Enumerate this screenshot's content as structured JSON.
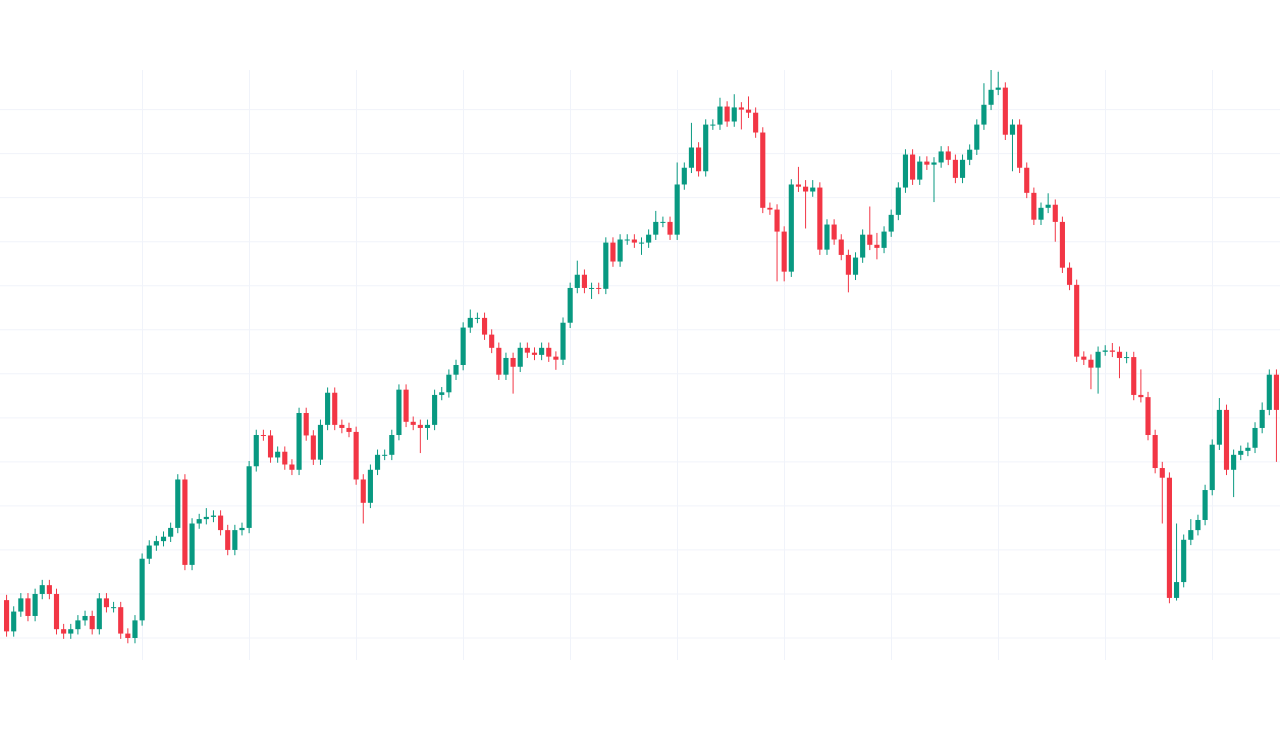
{
  "chart_data": {
    "type": "candlestick",
    "up_color": "#089981",
    "down_color": "#f23645",
    "grid": true,
    "grid_color": "#f0f3fa",
    "ylim": [
      5,
      139
    ],
    "yticks": [
      10,
      20,
      30,
      40,
      50,
      60,
      70,
      80,
      90,
      100,
      110,
      120,
      130
    ],
    "ohlc": [
      [
        18.6,
        19.8,
        10.3,
        11.5
      ],
      [
        11.5,
        17.2,
        10.3,
        16
      ],
      [
        16,
        20.2,
        14.8,
        19
      ],
      [
        19,
        20.2,
        13.8,
        15
      ],
      [
        15,
        21.2,
        13.8,
        20
      ],
      [
        20,
        23.2,
        18.8,
        22
      ],
      [
        22,
        23.2,
        18.8,
        20
      ],
      [
        20,
        21.2,
        10.8,
        12
      ],
      [
        12,
        13.2,
        9.8,
        11
      ],
      [
        11,
        13.2,
        9.8,
        12
      ],
      [
        12,
        15.2,
        10.8,
        14
      ],
      [
        14,
        16.2,
        12.8,
        15
      ],
      [
        15,
        16.2,
        10.8,
        12
      ],
      [
        12,
        20.2,
        10.8,
        19
      ],
      [
        19,
        20.2,
        15.8,
        17
      ],
      [
        17,
        18.2,
        15.8,
        17
      ],
      [
        17,
        18.2,
        9.8,
        11
      ],
      [
        11,
        12.2,
        8.8,
        10
      ],
      [
        10,
        15.2,
        8.8,
        14
      ],
      [
        14,
        29.2,
        12.8,
        28
      ],
      [
        28,
        32.2,
        26.8,
        31
      ],
      [
        31,
        33.2,
        29.8,
        32
      ],
      [
        32,
        34.2,
        30.8,
        33
      ],
      [
        33,
        36.2,
        31.8,
        35
      ],
      [
        35,
        47.2,
        33.8,
        46
      ],
      [
        46,
        47.2,
        25.4,
        26.6
      ],
      [
        26.6,
        37.2,
        25.4,
        36
      ],
      [
        36,
        38.2,
        34.8,
        37
      ],
      [
        37,
        39.5,
        35.8,
        37.5
      ],
      [
        37.5,
        39,
        36.3,
        37.8
      ],
      [
        37.8,
        39,
        33.3,
        34.5
      ],
      [
        34.5,
        35.7,
        28.8,
        30
      ],
      [
        30,
        35.7,
        28.8,
        34.5
      ],
      [
        34.5,
        36.2,
        33.3,
        35
      ],
      [
        35,
        50.2,
        33.8,
        49
      ],
      [
        49,
        57.3,
        47.8,
        56.1
      ],
      [
        56.1,
        57.3,
        54.8,
        56
      ],
      [
        56,
        57.2,
        49.8,
        51
      ],
      [
        51,
        53.5,
        49.8,
        52.3
      ],
      [
        52.3,
        53.5,
        48.2,
        49.4
      ],
      [
        49.4,
        50.6,
        47,
        48.2
      ],
      [
        48.2,
        62.3,
        47,
        61.1
      ],
      [
        61.1,
        62.3,
        54.8,
        56
      ],
      [
        56,
        57.2,
        49.3,
        50.5
      ],
      [
        50.5,
        59.6,
        49.3,
        58.4
      ],
      [
        58.4,
        66.9,
        57.2,
        65.7
      ],
      [
        65.7,
        66.9,
        57.2,
        58.4
      ],
      [
        58.4,
        59.6,
        56.5,
        57.7
      ],
      [
        57.7,
        58.9,
        55.6,
        56.8
      ],
      [
        56.8,
        58,
        44.8,
        46
      ],
      [
        46,
        47.2,
        36,
        40.7
      ],
      [
        40.7,
        49.4,
        39.5,
        48.2
      ],
      [
        48.2,
        52.8,
        47,
        51.6
      ],
      [
        51.6,
        52.8,
        50.4,
        51.6
      ],
      [
        51.6,
        57.3,
        50.4,
        56.1
      ],
      [
        56.1,
        67.6,
        54.9,
        66.4
      ],
      [
        66.4,
        67.6,
        57.9,
        59.1
      ],
      [
        59.1,
        60.3,
        57.2,
        58.4
      ],
      [
        58.4,
        59.6,
        52,
        57.7
      ],
      [
        57.7,
        59.6,
        55,
        58.4
      ],
      [
        58.4,
        66.4,
        57.2,
        65.2
      ],
      [
        65.2,
        67,
        64,
        65.8
      ],
      [
        65.8,
        71,
        64.6,
        69.8
      ],
      [
        69.8,
        73.2,
        68.6,
        72
      ],
      [
        72,
        81.7,
        70.8,
        80.5
      ],
      [
        80.5,
        84.6,
        79.3,
        82.7
      ],
      [
        82.7,
        83.9,
        81.5,
        82.7
      ],
      [
        82.7,
        83.9,
        77.7,
        78.9
      ],
      [
        78.9,
        80.1,
        74.7,
        75.9
      ],
      [
        75.9,
        77.1,
        68.6,
        69.8
      ],
      [
        69.8,
        74.8,
        68.6,
        73.6
      ],
      [
        73.6,
        74.8,
        65.5,
        71.6
      ],
      [
        71.6,
        77.1,
        70.4,
        75.9
      ],
      [
        75.9,
        77.1,
        73.6,
        74.8
      ],
      [
        74.8,
        76,
        73.1,
        74.3
      ],
      [
        74.3,
        77.1,
        73.1,
        75.9
      ],
      [
        75.9,
        77.1,
        72.7,
        73.9
      ],
      [
        73.9,
        75.1,
        70.9,
        73.2
      ],
      [
        73.2,
        82.8,
        72,
        81.6
      ],
      [
        81.6,
        90.7,
        80.4,
        89.5
      ],
      [
        89.5,
        95.7,
        88.3,
        92.5
      ],
      [
        92.5,
        93.7,
        88.3,
        89.5
      ],
      [
        89.5,
        90.7,
        87,
        89.5
      ],
      [
        89.5,
        90.7,
        88.1,
        89.3
      ],
      [
        89.3,
        101,
        88.1,
        99.8
      ],
      [
        99.8,
        101,
        94.3,
        95.5
      ],
      [
        95.5,
        101.7,
        94.3,
        100.5
      ],
      [
        100.5,
        101.7,
        99.3,
        100.5
      ],
      [
        100.5,
        101.7,
        98.6,
        99.8
      ],
      [
        99.8,
        101,
        97,
        99.8
      ],
      [
        99.8,
        102.8,
        98.6,
        101.6
      ],
      [
        101.6,
        107,
        100.4,
        104.5
      ],
      [
        104.5,
        105.7,
        103.3,
        104.5
      ],
      [
        104.5,
        105.7,
        100.4,
        101.6
      ],
      [
        101.6,
        118,
        100.4,
        113
      ],
      [
        113,
        118,
        111.8,
        116.8
      ],
      [
        116.8,
        127,
        115.6,
        121.4
      ],
      [
        121.4,
        122.6,
        114.8,
        116
      ],
      [
        116,
        127.8,
        114.8,
        126.6
      ],
      [
        126.6,
        127.8,
        125.4,
        126.6
      ],
      [
        126.6,
        132.7,
        125.4,
        130.7
      ],
      [
        130.7,
        131.9,
        126.1,
        127.3
      ],
      [
        127.3,
        133.5,
        126.1,
        130.5
      ],
      [
        130.5,
        131.7,
        125.5,
        130
      ],
      [
        130,
        133,
        128.1,
        129.3
      ],
      [
        129.3,
        130.5,
        123.6,
        124.8
      ],
      [
        124.8,
        126,
        106.5,
        107.7
      ],
      [
        107.7,
        108.9,
        106.1,
        107.3
      ],
      [
        107.3,
        108.5,
        91,
        102.3
      ],
      [
        102.3,
        103.5,
        91,
        93.2
      ],
      [
        93.2,
        114.2,
        92,
        113
      ],
      [
        113,
        117,
        111.3,
        112.5
      ],
      [
        112.5,
        114,
        103,
        111.4
      ],
      [
        111.4,
        114,
        110.2,
        112.3
      ],
      [
        112.3,
        113.5,
        97,
        98.2
      ],
      [
        98.2,
        105.1,
        97,
        103.9
      ],
      [
        103.9,
        105.1,
        99.3,
        100.5
      ],
      [
        100.5,
        101.7,
        95.8,
        97
      ],
      [
        97,
        98.2,
        88.5,
        92.5
      ],
      [
        92.5,
        97.6,
        91.3,
        96.4
      ],
      [
        96.4,
        102.8,
        95.2,
        101.6
      ],
      [
        101.6,
        108,
        98.1,
        99.3
      ],
      [
        99.3,
        102,
        96,
        98.6
      ],
      [
        98.6,
        103.5,
        97.4,
        102.3
      ],
      [
        102.3,
        107.3,
        101.1,
        106.1
      ],
      [
        106.1,
        113.5,
        104.9,
        112.3
      ],
      [
        112.3,
        121,
        111.1,
        119.8
      ],
      [
        119.8,
        121,
        112.9,
        114.1
      ],
      [
        114.1,
        119.4,
        112.9,
        118.2
      ],
      [
        118.2,
        119.4,
        116.3,
        117.5
      ],
      [
        117.5,
        119.2,
        109,
        118
      ],
      [
        118,
        121.7,
        116.8,
        120.5
      ],
      [
        120.5,
        121.7,
        117.4,
        118.6
      ],
      [
        118.6,
        119.8,
        113.3,
        114.5
      ],
      [
        114.5,
        119.8,
        113.3,
        118.6
      ],
      [
        118.6,
        122.1,
        117.4,
        120.9
      ],
      [
        120.9,
        127.8,
        119.7,
        126.6
      ],
      [
        126.6,
        136,
        125.4,
        131.1
      ],
      [
        131.1,
        139,
        129.9,
        134.5
      ],
      [
        134.5,
        138.6,
        133.3,
        135
      ],
      [
        135,
        136.2,
        123.1,
        124.3
      ],
      [
        124.3,
        127.8,
        116,
        126.6
      ],
      [
        126.6,
        127.8,
        115.6,
        116.8
      ],
      [
        116.8,
        118,
        109.9,
        111.1
      ],
      [
        111.1,
        112.3,
        103.8,
        105
      ],
      [
        105,
        108.9,
        103.8,
        107.7
      ],
      [
        107.7,
        111,
        106.5,
        108.4
      ],
      [
        108.4,
        109.6,
        100,
        104.5
      ],
      [
        104.5,
        105.7,
        92.9,
        94.1
      ],
      [
        94.1,
        95.3,
        89,
        90.2
      ],
      [
        90.2,
        91.4,
        72.7,
        73.9
      ],
      [
        73.9,
        75.1,
        72,
        73.2
      ],
      [
        73.2,
        74.4,
        66.5,
        71.4
      ],
      [
        71.4,
        76.2,
        65.5,
        75
      ],
      [
        75,
        76.5,
        74.1,
        75.3
      ],
      [
        75.3,
        77,
        73.8,
        75
      ],
      [
        75,
        76.2,
        69,
        73.6
      ],
      [
        73.6,
        75,
        72.4,
        73.8
      ],
      [
        73.8,
        75,
        64,
        65.2
      ],
      [
        65.2,
        71,
        63.5,
        64.7
      ],
      [
        64.7,
        65.9,
        54.9,
        56.1
      ],
      [
        56.1,
        57.3,
        47.4,
        48.6
      ],
      [
        48.6,
        50,
        36,
        46.4
      ],
      [
        46.4,
        47.6,
        17.9,
        19.1
      ],
      [
        19.1,
        36,
        18.5,
        22.7
      ],
      [
        22.7,
        33.5,
        21.5,
        32.3
      ],
      [
        32.3,
        37,
        31.1,
        34.5
      ],
      [
        34.5,
        38,
        33.3,
        36.8
      ],
      [
        36.8,
        44.8,
        35.6,
        43.6
      ],
      [
        43.6,
        55.1,
        42.4,
        53.9
      ],
      [
        53.9,
        64.5,
        52.7,
        61.8
      ],
      [
        61.8,
        63,
        47,
        48.2
      ],
      [
        48.2,
        52.8,
        42,
        51.6
      ],
      [
        51.6,
        53.7,
        50.4,
        52.5
      ],
      [
        52.5,
        54.4,
        51.3,
        53.2
      ],
      [
        53.2,
        59,
        52,
        57.7
      ],
      [
        57.7,
        63.5,
        56.5,
        61.8
      ],
      [
        61.8,
        71,
        60.6,
        69.8
      ],
      [
        69.8,
        71,
        50,
        61.8
      ]
    ]
  }
}
